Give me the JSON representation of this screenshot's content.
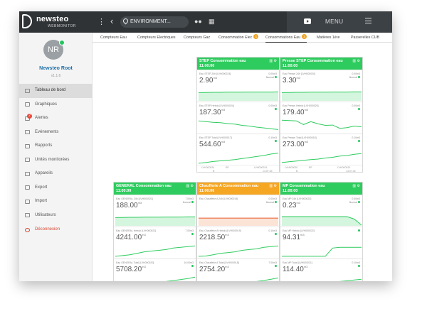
{
  "app": {
    "logo_text": "newsteo",
    "logo_sub": "WEBMONITOR",
    "env_label": "ENVIRONMENT...",
    "menu_label": "MENU"
  },
  "user": {
    "initials": "NR",
    "name": "Newsteo Root",
    "version": "v1.1.6"
  },
  "sidebar": {
    "items": [
      {
        "label": "Tableau de bord",
        "icon": "monitor-icon"
      },
      {
        "label": "Graphiques",
        "icon": "chart-icon"
      },
      {
        "label": "Alertes",
        "icon": "bell-icon",
        "badge": "2"
      },
      {
        "label": "Evénements",
        "icon": "pin-icon"
      },
      {
        "label": "Rapports",
        "icon": "document-icon"
      },
      {
        "label": "Unités monitorées",
        "icon": "target-icon"
      },
      {
        "label": "Appareils",
        "icon": "grid-icon"
      },
      {
        "label": "Export",
        "icon": "export-icon"
      },
      {
        "label": "Import",
        "icon": "import-icon"
      },
      {
        "label": "Utilisateurs",
        "icon": "user-icon"
      },
      {
        "label": "Déconnexion",
        "icon": "power-icon"
      }
    ]
  },
  "tabs": [
    {
      "label": "Compteurs Eau"
    },
    {
      "label": "Compteurs Electriques"
    },
    {
      "label": "Compteurs Gaz"
    },
    {
      "label": "Consommation Elec",
      "badge": "1"
    },
    {
      "label": "Consommations Eau",
      "badge": "2"
    },
    {
      "label": "Matières 1ère"
    },
    {
      "label": "Passerelles CUB"
    }
  ],
  "colors": {
    "green": "#2ecc5e",
    "orange": "#f5a623",
    "fill": "#d4f5de",
    "line": "#2ecc5e"
  },
  "cards": [
    {
      "title": "STEP Consommation eau",
      "time": "11:00:00",
      "color": "green",
      "sensors": [
        {
          "label": "Eau STEP 24h [LVH000024]",
          "value": "2.90",
          "unit": "m3",
          "right1": "0.00m3",
          "right2": "Normal",
          "style": "area",
          "data": [
            0.55,
            0.56,
            0.57,
            0.57,
            0.58,
            0.58,
            0.58,
            0.59,
            0.59,
            0.59,
            0.59,
            0.6
          ]
        },
        {
          "label": "Eau STEP Hebdo [LVH000024]",
          "value": "187.30",
          "unit": "m3",
          "right1": "0.00m3",
          "right2": "",
          "style": "line",
          "data": [
            0.8,
            0.75,
            0.7,
            0.68,
            0.62,
            0.58,
            0.5,
            0.45,
            0.38,
            0.33,
            0.27,
            0.22
          ]
        },
        {
          "label": "Eau STEP Total [LVH000017]",
          "value": "544.60",
          "unit": "m3",
          "right1": "0.10m3",
          "right2": "",
          "style": "line",
          "data": [
            0.1,
            0.15,
            0.22,
            0.26,
            0.3,
            0.35,
            0.42,
            0.48,
            0.55,
            0.62,
            0.72,
            0.78
          ]
        }
      ],
      "footer": [
        "LVH000024",
        "RF",
        "LVH000024",
        "B",
        "14:07:44"
      ]
    },
    {
      "title": "Presse STEP Consommation eau",
      "time": "11:00:00",
      "color": "green",
      "sensors": [
        {
          "label": "Eau Presse 24h [LVH000020]",
          "value": "3.30",
          "unit": "m3",
          "right1": "0.00m3",
          "right2": "Normal",
          "style": "area",
          "data": [
            0.55,
            0.56,
            0.57,
            0.57,
            0.58,
            0.58,
            0.58,
            0.59,
            0.59,
            0.59,
            0.6,
            0.6
          ]
        },
        {
          "label": "Eau Presse Hebdo [LVH000020]",
          "value": "179.40",
          "unit": "m3",
          "right1": "0.00m3",
          "right2": "",
          "style": "line",
          "data": [
            0.85,
            0.82,
            0.8,
            0.55,
            0.75,
            0.6,
            0.5,
            0.52,
            0.3,
            0.35,
            0.45,
            0.4
          ]
        },
        {
          "label": "Eau Presse Total [LVH000018]",
          "value": "273.00",
          "unit": "m3",
          "right1": "0.10m3",
          "right2": "",
          "style": "line",
          "data": [
            0.15,
            0.2,
            0.25,
            0.3,
            0.35,
            0.38,
            0.45,
            0.5,
            0.58,
            0.62,
            0.7,
            0.75
          ]
        }
      ],
      "footer": [
        "LVH000020",
        "RF",
        "LVH000020",
        "B",
        "14:07:44"
      ]
    },
    {
      "title": "GENERAL Consommation eau",
      "time": "11:00:00",
      "color": "green",
      "sensors": [
        {
          "label": "Eau GENERAL 24h [LVH000021]",
          "value": "188.00",
          "unit": "m3",
          "right1": "7.00m3",
          "right2": "Normal",
          "style": "area",
          "data": [
            0.55,
            0.56,
            0.57,
            0.57,
            0.58,
            0.58,
            0.58,
            0.59,
            0.59,
            0.59,
            0.6,
            0.6
          ]
        },
        {
          "label": "Eau GENERAL Hebdo [LVH000021]",
          "value": "4241.00",
          "unit": "m3",
          "right1": "7.00m3",
          "right2": "",
          "style": "line",
          "data": [
            0.1,
            0.15,
            0.2,
            0.3,
            0.4,
            0.45,
            0.5,
            0.55,
            0.65,
            0.7,
            0.75,
            0.8
          ]
        },
        {
          "label": "Eau GENERAL Total [LVH000020]",
          "value": "5708.20",
          "unit": "m3",
          "right1": "16.00m3",
          "right2": "",
          "style": "line",
          "data": [
            0.1,
            0.18,
            0.25,
            0.3,
            0.38,
            0.45,
            0.5,
            0.55,
            0.62,
            0.68,
            0.75,
            0.85
          ]
        }
      ],
      "footer": []
    },
    {
      "title": "Chaufferie A Consommation eau",
      "time": "11:00:00",
      "color": "orange",
      "sensors": [
        {
          "label": "Eau Chaufferie A 24h [LVH000019]",
          "value": "",
          "unit": "",
          "right1": "0.00m3",
          "right2": "Normal",
          "style": "area",
          "data": [
            0.52,
            0.52,
            0.52,
            0.52,
            0.52,
            0.52,
            0.52,
            0.52,
            0.52,
            0.52,
            0.52,
            0.52
          ]
        },
        {
          "label": "Eau Chaufferie A Hebdo [LVH000019]",
          "value": "2218.50",
          "unit": "m3",
          "right1": "0.10m3",
          "right2": "",
          "style": "line",
          "data": [
            0.1,
            0.12,
            0.2,
            0.3,
            0.35,
            0.4,
            0.5,
            0.55,
            0.6,
            0.7,
            0.75,
            0.8
          ]
        },
        {
          "label": "Eau Chaufferie A Total [LVH000018]",
          "value": "2754.20",
          "unit": "m3",
          "right1": "7.00m3",
          "right2": "",
          "style": "line",
          "data": [
            0.1,
            0.15,
            0.2,
            0.25,
            0.3,
            0.38,
            0.45,
            0.5,
            0.55,
            0.62,
            0.7,
            0.8
          ]
        }
      ],
      "footer": []
    },
    {
      "title": "MP Consommation eau",
      "time": "11:00:00",
      "color": "green",
      "sensors": [
        {
          "label": "Eau MP 24h [LVH000022]",
          "value": "0.23",
          "unit": "m3",
          "right1": "0.00m3",
          "right2": "Normal",
          "style": "area",
          "data": [
            0.62,
            0.62,
            0.62,
            0.62,
            0.62,
            0.62,
            0.62,
            0.62,
            0.62,
            0.62,
            0.45,
            0.05
          ]
        },
        {
          "label": "Eau MP Hebdo [LVH000022]",
          "value": "94.31",
          "unit": "m3",
          "right1": "",
          "right2": "",
          "style": "line",
          "data": [
            0.1,
            0.1,
            0.1,
            0.1,
            0.1,
            0.1,
            0.1,
            0.65,
            0.7,
            0.7,
            0.7,
            0.7
          ]
        },
        {
          "label": "Eau MP Total [LVH000021]",
          "value": "114.40",
          "unit": "m3",
          "right1": "0.10m3",
          "right2": "",
          "style": "line",
          "data": [
            0.05,
            0.05,
            0.05,
            0.05,
            0.05,
            0.05,
            0.05,
            0.15,
            0.55,
            0.6,
            0.65,
            0.7
          ]
        }
      ],
      "footer": []
    }
  ]
}
